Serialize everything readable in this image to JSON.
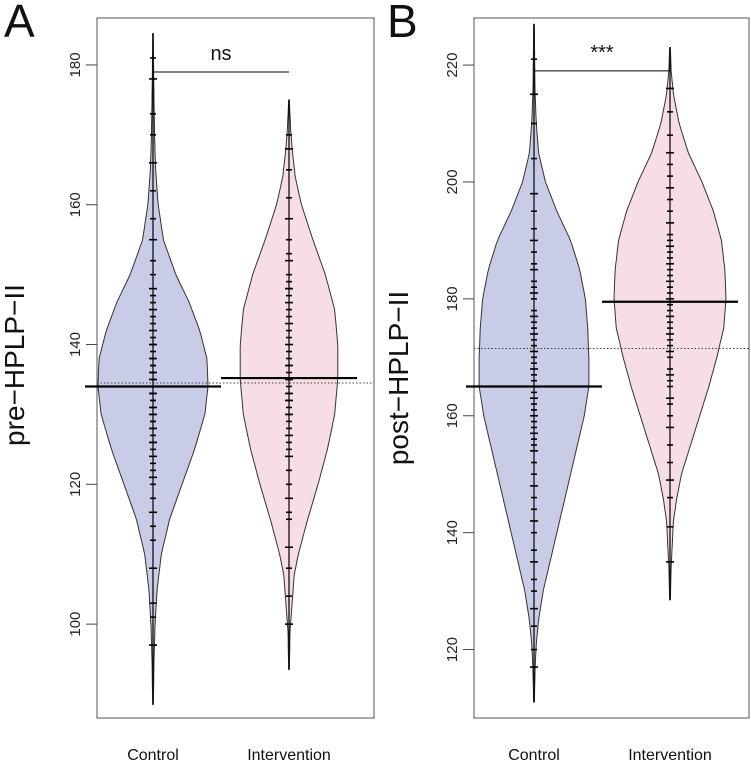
{
  "chart_data": [
    {
      "type": "violin",
      "panel": "A",
      "ylabel": "pre−HPLP−II",
      "categories": [
        "Control",
        "Intervention"
      ],
      "ylim": [
        88,
        185
      ],
      "yticks": [
        100,
        120,
        140,
        160,
        180
      ],
      "grand_mean": 134.5,
      "significance": {
        "label": "ns",
        "y": 179
      },
      "series": [
        {
          "name": "Control",
          "color": "#c9cce6",
          "mean": 134,
          "range": [
            88.5,
            184.5
          ],
          "density_points": [
            [
              88.5,
              0.3
            ],
            [
              95,
              1
            ],
            [
              100,
              2
            ],
            [
              105,
              4
            ],
            [
              110,
              8
            ],
            [
              115,
              16
            ],
            [
              120,
              28
            ],
            [
              125,
              40
            ],
            [
              130,
              50
            ],
            [
              134,
              53
            ],
            [
              138,
              52
            ],
            [
              142,
              45
            ],
            [
              146,
              35
            ],
            [
              150,
              22
            ],
            [
              155,
              10
            ],
            [
              160,
              5
            ],
            [
              165,
              2.5
            ],
            [
              170,
              1.5
            ],
            [
              175,
              1
            ],
            [
              180,
              0.5
            ],
            [
              184.5,
              0.3
            ]
          ],
          "values": [
            97,
            101,
            103,
            108,
            112,
            114,
            116,
            118,
            120,
            121,
            122,
            123,
            124,
            125,
            126,
            126,
            127,
            128,
            128,
            129,
            129,
            130,
            130,
            131,
            131,
            132,
            132,
            133,
            133,
            133,
            134,
            134,
            134,
            135,
            135,
            136,
            136,
            137,
            137,
            138,
            138,
            139,
            140,
            140,
            141,
            142,
            143,
            144,
            145,
            146,
            147,
            148,
            150,
            152,
            155,
            158,
            162,
            166,
            170,
            173,
            178,
            181
          ]
        },
        {
          "name": "Intervention",
          "color": "#f7dde4",
          "mean": 135.2,
          "range": [
            93.5,
            175
          ],
          "density_points": [
            [
              93.5,
              0.3
            ],
            [
              99,
              1
            ],
            [
              103,
              3
            ],
            [
              107,
              5
            ],
            [
              110,
              9
            ],
            [
              115,
              18
            ],
            [
              120,
              28
            ],
            [
              125,
              37
            ],
            [
              130,
              44
            ],
            [
              135,
              47
            ],
            [
              140,
              47
            ],
            [
              145,
              44
            ],
            [
              150,
              35
            ],
            [
              155,
              23
            ],
            [
              160,
              12
            ],
            [
              164,
              6
            ],
            [
              168,
              3
            ],
            [
              171,
              1.5
            ],
            [
              175,
              0.3
            ]
          ],
          "values": [
            100,
            104,
            108,
            111,
            115,
            116,
            118,
            120,
            122,
            124,
            125,
            126,
            127,
            128,
            129,
            130,
            130,
            131,
            132,
            132,
            133,
            133,
            134,
            135,
            135,
            136,
            137,
            137,
            138,
            139,
            140,
            141,
            142,
            143,
            144,
            145,
            146,
            147,
            148,
            148,
            149,
            150,
            152,
            153,
            155,
            158,
            161,
            165,
            168,
            170
          ]
        }
      ]
    },
    {
      "type": "violin",
      "panel": "B",
      "ylabel": "post−HPLP−II",
      "categories": [
        "Control",
        "Intervention"
      ],
      "ylim": [
        110,
        226
      ],
      "yticks": [
        120,
        140,
        160,
        180,
        200,
        220
      ],
      "grand_mean": 171.5,
      "significance": {
        "label": "***",
        "y": 219
      },
      "series": [
        {
          "name": "Control",
          "color": "#c9cce6",
          "mean": 165,
          "range": [
            111,
            227
          ],
          "density_points": [
            [
              111,
              0.3
            ],
            [
              117,
              1
            ],
            [
              121,
              2
            ],
            [
              125,
              4
            ],
            [
              130,
              8
            ],
            [
              135,
              14
            ],
            [
              140,
              20
            ],
            [
              145,
              26
            ],
            [
              150,
              32
            ],
            [
              155,
              38
            ],
            [
              160,
              44
            ],
            [
              165,
              48
            ],
            [
              170,
              48
            ],
            [
              175,
              47
            ],
            [
              180,
              45
            ],
            [
              185,
              40
            ],
            [
              190,
              32
            ],
            [
              195,
              20
            ],
            [
              200,
              10
            ],
            [
              205,
              4
            ],
            [
              210,
              2
            ],
            [
              215,
              1
            ],
            [
              220,
              0.6
            ],
            [
              227,
              0.3
            ]
          ],
          "values": [
            117,
            120,
            124,
            127,
            130,
            132,
            135,
            137,
            140,
            142,
            144,
            146,
            148,
            150,
            152,
            154,
            155,
            156,
            157,
            158,
            159,
            160,
            161,
            162,
            163,
            164,
            165,
            165,
            166,
            167,
            168,
            169,
            170,
            171,
            172,
            173,
            174,
            175,
            176,
            177,
            178,
            180,
            181,
            182,
            183,
            185,
            186,
            188,
            190,
            192,
            195,
            198,
            204,
            210,
            215,
            221
          ]
        },
        {
          "name": "Intervention",
          "color": "#f7dde4",
          "mean": 179.5,
          "range": [
            128.5,
            223
          ],
          "density_points": [
            [
              128.5,
              0.3
            ],
            [
              134,
              1
            ],
            [
              138,
              2
            ],
            [
              142,
              3
            ],
            [
              146,
              6
            ],
            [
              150,
              10
            ],
            [
              155,
              18
            ],
            [
              160,
              26
            ],
            [
              165,
              34
            ],
            [
              170,
              41
            ],
            [
              175,
              47
            ],
            [
              180,
              49
            ],
            [
              185,
              48
            ],
            [
              190,
              45
            ],
            [
              195,
              38
            ],
            [
              200,
              28
            ],
            [
              205,
              16
            ],
            [
              210,
              8
            ],
            [
              215,
              3
            ],
            [
              219,
              1
            ],
            [
              223,
              0.3
            ]
          ],
          "values": [
            135,
            141,
            146,
            149,
            152,
            155,
            158,
            160,
            162,
            163,
            165,
            166,
            167,
            168,
            170,
            171,
            172,
            173,
            174,
            175,
            176,
            177,
            178,
            179,
            180,
            181,
            182,
            183,
            184,
            185,
            186,
            187,
            188,
            189,
            190,
            191,
            193,
            195,
            197,
            199,
            201,
            203,
            205,
            208,
            212,
            216
          ]
        }
      ]
    }
  ]
}
